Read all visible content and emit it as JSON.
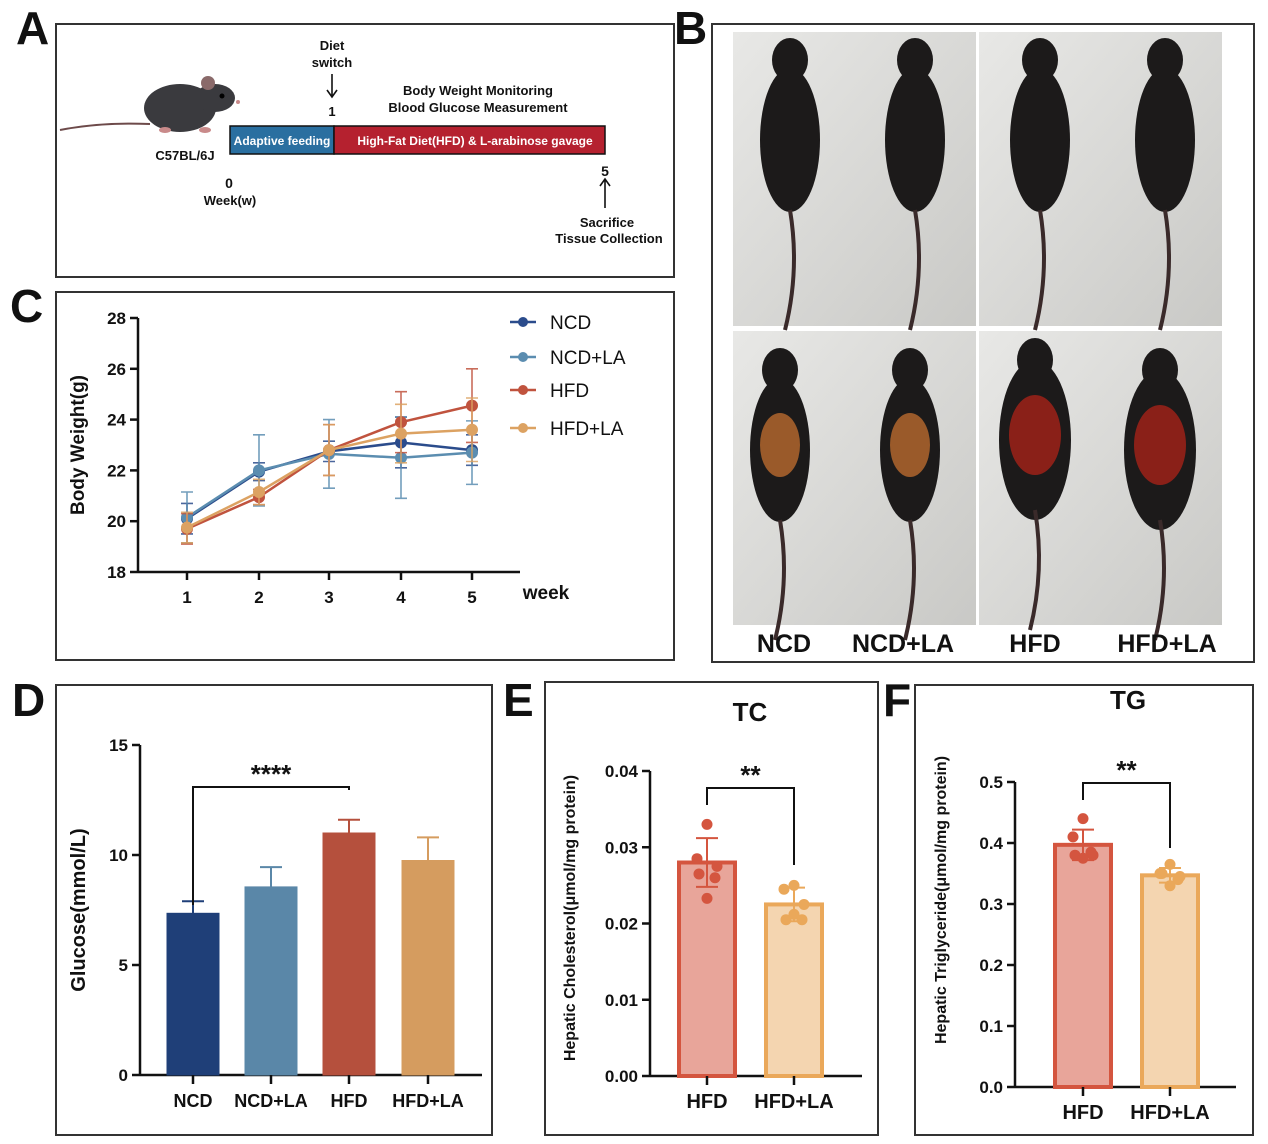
{
  "panels": {
    "A": {
      "letter": "A",
      "strain": "C57BL/6J",
      "diet_switch": [
        "Diet",
        "switch"
      ],
      "monitoring": [
        "Body Weight Monitoring",
        "Blood Glucose Measurement"
      ],
      "adaptive": "Adaptive feeding",
      "hfd_phase": "High-Fat Diet(HFD) & L-arabinose gavage",
      "week0": "0",
      "week1": "1",
      "week5": "5",
      "week_label": "Week(w)",
      "sacrifice": [
        "Sacrifice",
        "Tissue Collection"
      ]
    },
    "B": {
      "letter": "B",
      "groups": [
        "NCD",
        "NCD+LA",
        "HFD",
        "HFD+LA"
      ]
    },
    "C": {
      "letter": "C"
    },
    "D": {
      "letter": "D"
    },
    "E": {
      "letter": "E"
    },
    "F": {
      "letter": "F"
    }
  },
  "colors": {
    "NCD": "#2b4c8c",
    "NCD+LA": "#5b8db0",
    "HFD": "#c0533e",
    "HFD+LA": "#dca262"
  },
  "chart_data": [
    {
      "id": "C",
      "type": "line",
      "title": "",
      "xlabel": "week",
      "ylabel": "Body Weight(g)",
      "x": [
        1,
        2,
        3,
        4,
        5
      ],
      "ylim": [
        18,
        28
      ],
      "yticks": [
        18,
        20,
        22,
        24,
        26,
        28
      ],
      "legend": "top-right",
      "series": [
        {
          "name": "NCD",
          "values": [
            20.1,
            21.95,
            22.75,
            23.1,
            22.8
          ],
          "err": [
            0.6,
            0.35,
            0.4,
            1.0,
            0.6
          ]
        },
        {
          "name": "NCD+LA",
          "values": [
            20.15,
            22.0,
            22.65,
            22.5,
            22.7
          ],
          "err": [
            1.0,
            1.4,
            1.35,
            1.6,
            1.25
          ]
        },
        {
          "name": "HFD",
          "values": [
            19.7,
            20.95,
            22.8,
            23.9,
            24.55
          ],
          "err": [
            0.6,
            0.3,
            1.0,
            1.2,
            1.45
          ]
        },
        {
          "name": "HFD+LA",
          "values": [
            19.75,
            21.15,
            22.8,
            23.45,
            23.6
          ],
          "err": [
            0.6,
            0.5,
            1.0,
            1.15,
            1.25
          ]
        }
      ]
    },
    {
      "id": "D",
      "type": "bar",
      "title": "",
      "xlabel": "",
      "ylabel": "Glucose(mmol/L)",
      "categories": [
        "NCD",
        "NCD+LA",
        "HFD",
        "HFD+LA"
      ],
      "values": [
        7.35,
        8.55,
        11.0,
        9.75
      ],
      "err": [
        0.55,
        0.9,
        0.6,
        1.05
      ],
      "ylim": [
        0,
        15
      ],
      "yticks": [
        0,
        5,
        10,
        15
      ],
      "significance": {
        "between": [
          "NCD",
          "HFD"
        ],
        "label": "****"
      }
    },
    {
      "id": "E",
      "type": "bar",
      "title": "TC",
      "xlabel": "",
      "ylabel": "Hepatic Cholesterol(μmol/mg protein)",
      "categories": [
        "HFD",
        "HFD+LA"
      ],
      "values": [
        0.028,
        0.0225
      ],
      "err": [
        0.0032,
        0.0022
      ],
      "points": [
        [
          0.033,
          0.0285,
          0.0275,
          0.0265,
          0.026,
          0.0233
        ],
        [
          0.025,
          0.0245,
          0.0225,
          0.0205,
          0.0205,
          0.0212
        ]
      ],
      "ylim": [
        0,
        0.04
      ],
      "yticks": [
        "0.00",
        "0.01",
        "0.02",
        "0.03",
        "0.04"
      ],
      "significance": {
        "between": [
          "HFD",
          "HFD+LA"
        ],
        "label": "**"
      }
    },
    {
      "id": "F",
      "type": "bar",
      "title": "TG",
      "xlabel": "",
      "ylabel": "Hepatic Triglyceride(μmol/mg protein)",
      "categories": [
        "HFD",
        "HFD+LA"
      ],
      "values": [
        0.397,
        0.347
      ],
      "err": [
        0.025,
        0.012
      ],
      "points": [
        [
          0.44,
          0.41,
          0.38,
          0.38,
          0.385,
          0.375
        ],
        [
          0.365,
          0.35,
          0.345,
          0.35,
          0.34,
          0.33
        ]
      ],
      "ylim": [
        0,
        0.5
      ],
      "yticks": [
        "0.0",
        "0.1",
        "0.2",
        "0.3",
        "0.4",
        "0.5"
      ],
      "significance": {
        "between": [
          "HFD",
          "HFD+LA"
        ],
        "label": "**"
      }
    }
  ]
}
